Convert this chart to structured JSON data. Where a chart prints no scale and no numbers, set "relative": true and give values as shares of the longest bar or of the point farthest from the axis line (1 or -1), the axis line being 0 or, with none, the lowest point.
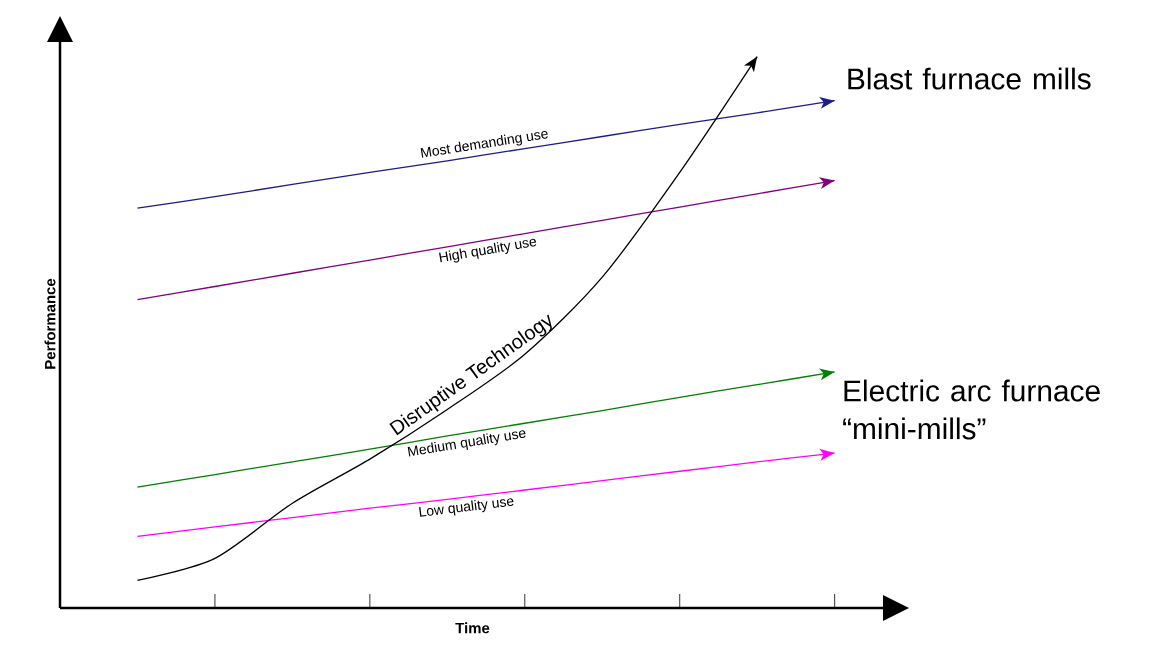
{
  "chart_data": {
    "type": "line",
    "relative": true,
    "xlabel": "Time",
    "ylabel": "Performance",
    "categories": [
      null,
      null,
      null,
      null,
      null,
      null,
      null,
      null,
      null,
      null,
      null
    ],
    "series": [
      {
        "name": "Most demanding use",
        "color": "#1c1c8a",
        "values": [
          null,
          0.725,
          0.746,
          0.768,
          0.79,
          0.811,
          0.833,
          0.855,
          0.877,
          0.898,
          0.92
        ]
      },
      {
        "name": "High quality use",
        "color": "#800080",
        "values": [
          null,
          0.559,
          0.583,
          0.607,
          0.631,
          0.655,
          0.679,
          0.703,
          0.727,
          0.751,
          0.775
        ]
      },
      {
        "name": "Medium quality use",
        "color": "#008000",
        "values": [
          null,
          0.219,
          0.242,
          0.265,
          0.288,
          0.312,
          0.335,
          0.358,
          0.382,
          0.405,
          0.428
        ]
      },
      {
        "name": "Low quality use",
        "color": "#ff00ff",
        "values": [
          null,
          0.13,
          0.147,
          0.164,
          0.181,
          0.197,
          0.214,
          0.231,
          0.248,
          0.265,
          0.281
        ]
      },
      {
        "name": "Disruptive Technology",
        "color": "#000000",
        "values": [
          null,
          0.05,
          0.09,
          0.19,
          0.27,
          0.36,
          0.46,
          0.6,
          0.79,
          1.0,
          null
        ]
      }
    ],
    "annotations": [
      "Blast furnace mills",
      "Electric arc furnace “mini-mills”"
    ],
    "legend": false,
    "marker": "none",
    "line_style": "solid",
    "tick_labels": false
  }
}
